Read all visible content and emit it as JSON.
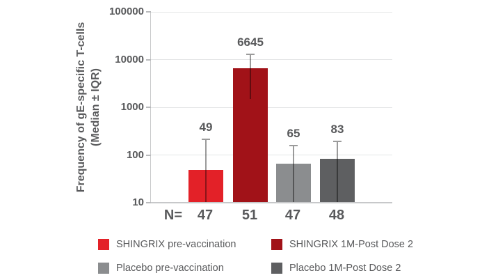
{
  "chart_data": {
    "type": "bar",
    "yscale": "log",
    "ylim": [
      10,
      100000
    ],
    "yticks": [
      10,
      100,
      1000,
      10000,
      100000
    ],
    "grid": "horizontal",
    "ylabel": "Frequency of gE-specific T-cells (Median ± IQR)",
    "ylabel_lines": [
      "Frequency of gE-specific T-cells",
      "(Median ± IQR)"
    ],
    "xlabel": "",
    "title": "",
    "n_prefix": "N=",
    "categories": [
      "SHINGRIX pre-vaccination",
      "SHINGRIX 1M-Post Dose 2",
      "Placebo pre-vaccination",
      "Placebo 1M-Post Dose 2"
    ],
    "bars": [
      {
        "label": "SHINGRIX pre-vaccination",
        "median": 49,
        "iqr_upper": 210,
        "iqr_lower": 10,
        "n": 47,
        "color": "#e32128"
      },
      {
        "label": "SHINGRIX 1M-Post Dose 2",
        "median": 6645,
        "iqr_upper": 13000,
        "iqr_lower": 1500,
        "n": 51,
        "color": "#a11218"
      },
      {
        "label": "Placebo pre-vaccination",
        "median": 65,
        "iqr_upper": 155,
        "iqr_lower": 10,
        "n": 47,
        "color": "#8b8d8f"
      },
      {
        "label": "Placebo 1M-Post Dose 2",
        "median": 83,
        "iqr_upper": 190,
        "iqr_lower": 10,
        "n": 48,
        "color": "#5e5f61"
      }
    ],
    "legend": [
      {
        "label": "SHINGRIX pre-vaccination",
        "color": "#e32128"
      },
      {
        "label": "SHINGRIX 1M-Post Dose 2",
        "color": "#a11218"
      },
      {
        "label": "Placebo pre-vaccination",
        "color": "#8b8d8f"
      },
      {
        "label": "Placebo 1M-Post Dose 2",
        "color": "#5e5f61"
      }
    ],
    "legend_position": "bottom"
  },
  "colors": {
    "text": "#58595b",
    "gridline": "#e4e5e6",
    "axis_line": "#c7c8ca",
    "error_bar": "#9b9b9b",
    "background": "#ffffff"
  }
}
